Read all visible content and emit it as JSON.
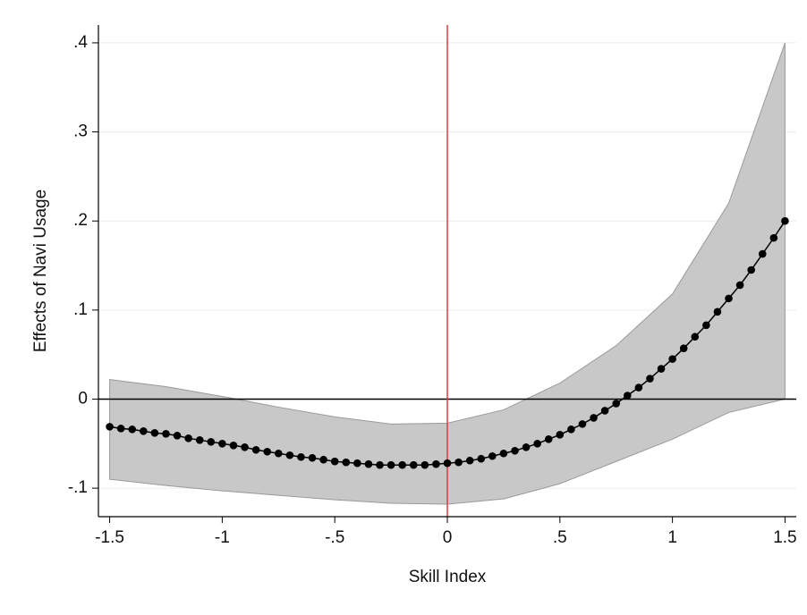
{
  "chart_data": {
    "type": "line",
    "x_label": "Skill Index",
    "y_label": "Effects of Navi Usage",
    "x": [
      -1.5,
      -1.45,
      -1.4,
      -1.35,
      -1.3,
      -1.25,
      -1.2,
      -1.15,
      -1.1,
      -1.05,
      -1,
      -0.95,
      -0.9,
      -0.85,
      -0.8,
      -0.75,
      -0.7,
      -0.65,
      -0.6,
      -0.55,
      -0.5,
      -0.45,
      -0.4,
      -0.35,
      -0.3,
      -0.25,
      -0.2,
      -0.15,
      -0.1,
      -0.05,
      0,
      0.05,
      0.1,
      0.15,
      0.2,
      0.25,
      0.3,
      0.35,
      0.4,
      0.45,
      0.5,
      0.55,
      0.6,
      0.65,
      0.7,
      0.75,
      0.8,
      0.85,
      0.9,
      0.95,
      1,
      1.05,
      1.1,
      1.15,
      1.2,
      1.25,
      1.3,
      1.35,
      1.4,
      1.45,
      1.5
    ],
    "series": [
      {
        "color": "#000000",
        "values": [
          -0.031,
          -0.033,
          -0.034,
          -0.036,
          -0.038,
          -0.039,
          -0.041,
          -0.044,
          -0.046,
          -0.048,
          -0.05,
          -0.052,
          -0.054,
          -0.057,
          -0.059,
          -0.061,
          -0.063,
          -0.065,
          -0.066,
          -0.068,
          -0.07,
          -0.071,
          -0.072,
          -0.073,
          -0.074,
          -0.074,
          -0.074,
          -0.074,
          -0.074,
          -0.073,
          -0.072,
          -0.071,
          -0.069,
          -0.067,
          -0.064,
          -0.061,
          -0.058,
          -0.054,
          -0.05,
          -0.045,
          -0.04,
          -0.034,
          -0.028,
          -0.021,
          -0.013,
          -0.005,
          0.004,
          0.013,
          0.023,
          0.034,
          0.045,
          0.057,
          0.07,
          0.083,
          0.098,
          0.113,
          0.128,
          0.145,
          0.163,
          0.181,
          0.2
        ]
      }
    ],
    "band": {
      "color": "#c8c8c8",
      "x": [
        -1.5,
        -1.25,
        -1,
        -0.75,
        -0.5,
        -0.25,
        0,
        0.25,
        0.5,
        0.75,
        1,
        1.25,
        1.5
      ],
      "upper": [
        0.022,
        0.014,
        0.003,
        -0.009,
        -0.02,
        -0.028,
        -0.027,
        -0.012,
        0.018,
        0.06,
        0.118,
        0.22,
        0.4
      ],
      "lower": [
        -0.09,
        -0.097,
        -0.103,
        -0.108,
        -0.113,
        -0.117,
        -0.118,
        -0.112,
        -0.095,
        -0.07,
        -0.045,
        -0.015,
        0.0
      ]
    },
    "vline": {
      "value": 0,
      "color": "#e03a3e"
    },
    "hline": {
      "value": 0,
      "color": "#000000"
    },
    "xlim": [
      -1.55,
      1.55
    ],
    "xticks": [
      -1.5,
      -1,
      {
        "value": -0.5,
        "label": "-.5"
      },
      0,
      {
        "value": 0.5,
        "label": ".5"
      },
      1,
      1.5
    ],
    "ylim": [
      -0.132,
      0.42
    ],
    "yticks": [
      {
        "value": -0.1,
        "label": "-.1"
      },
      0,
      {
        "value": 0.1,
        "label": ".1"
      },
      {
        "value": 0.2,
        "label": ".2"
      },
      {
        "value": 0.3,
        "label": ".3"
      },
      {
        "value": 0.4,
        "label": ".4"
      }
    ],
    "grid": true
  }
}
